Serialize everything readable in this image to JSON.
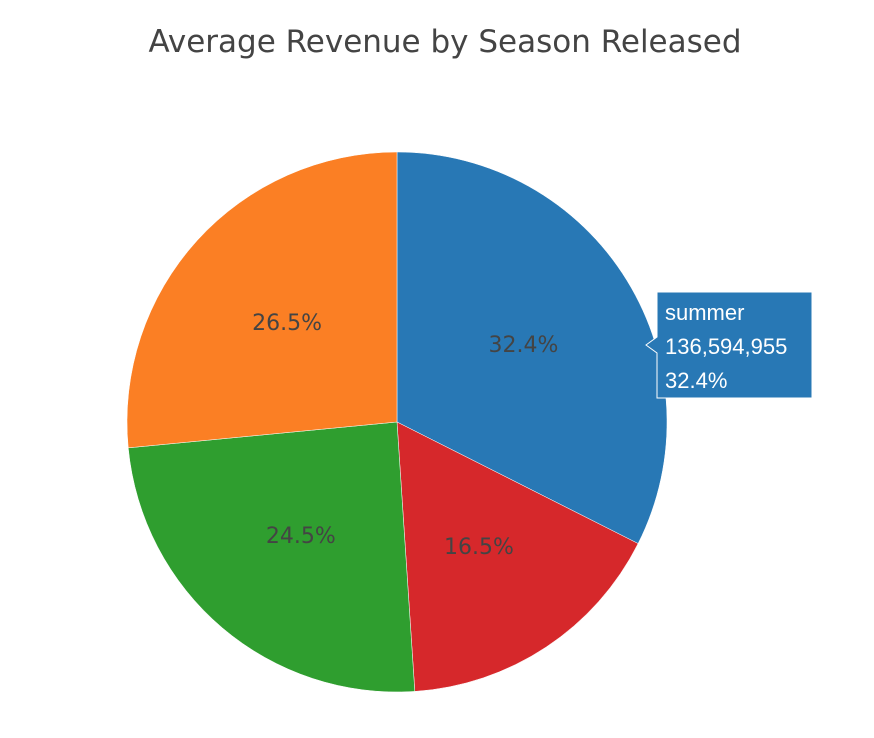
{
  "chart_data": {
    "type": "pie",
    "title": "Average Revenue by Season Released",
    "direction": "clockwise",
    "start_angle_deg": 0,
    "slices": [
      {
        "label": "summer",
        "percent": 32.4,
        "percent_label": "32.4%",
        "color": "#2878b5"
      },
      {
        "label": "",
        "percent": 16.5,
        "percent_label": "16.5%",
        "color": "#d6282b"
      },
      {
        "label": "",
        "percent": 24.5,
        "percent_label": "24.5%",
        "color": "#2f9e2f"
      },
      {
        "label": "",
        "percent": 26.5,
        "percent_label": "26.5%",
        "color": "#fb7f24"
      }
    ]
  },
  "tooltip": {
    "slice": "summer",
    "lines": [
      "summer",
      "136,594,955",
      "32.4%"
    ],
    "color": "#2878b5"
  }
}
